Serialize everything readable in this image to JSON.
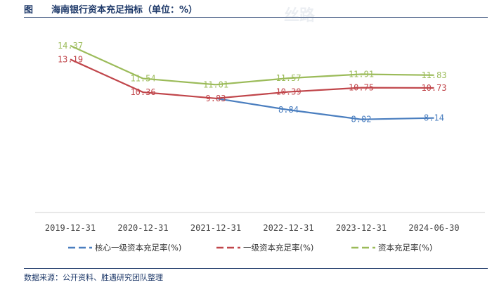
{
  "header": {
    "fig_label": "图",
    "title": "海南银行资本充足指标（单位：%）"
  },
  "source_note": "数据来源：公开资料、胜遇研究团队整理",
  "watermark": "丝路",
  "chart_data": {
    "type": "line",
    "title": "海南银行资本充足指标（单位：%）",
    "categories": [
      "2019-12-31",
      "2020-12-31",
      "2021-12-31",
      "2022-12-31",
      "2023-12-31",
      "2024-06-30"
    ],
    "ylim": [
      0,
      16
    ],
    "grid": false,
    "legend_position": "bottom",
    "series": [
      {
        "name": "核心一级资本充足率(%)",
        "color": "#4a7ebf",
        "values": [
          null,
          null,
          9.83,
          8.84,
          8.02,
          8.14
        ],
        "labels": [
          "",
          "",
          "",
          "8.84",
          "8.02",
          "8.14"
        ]
      },
      {
        "name": "一级资本充足率(%)",
        "color": "#c0454a",
        "values": [
          13.19,
          10.36,
          9.83,
          10.39,
          10.75,
          10.73
        ],
        "labels": [
          "13.19",
          "10.36",
          "9.83",
          "10.39",
          "10.75",
          "10.73"
        ]
      },
      {
        "name": "资本充足率(%)",
        "color": "#9bbb59",
        "values": [
          14.37,
          11.54,
          11.01,
          11.57,
          11.91,
          11.83
        ],
        "labels": [
          "14.37",
          "11.54",
          "11.01",
          "11.57",
          "11.91",
          "11.83"
        ]
      }
    ]
  }
}
